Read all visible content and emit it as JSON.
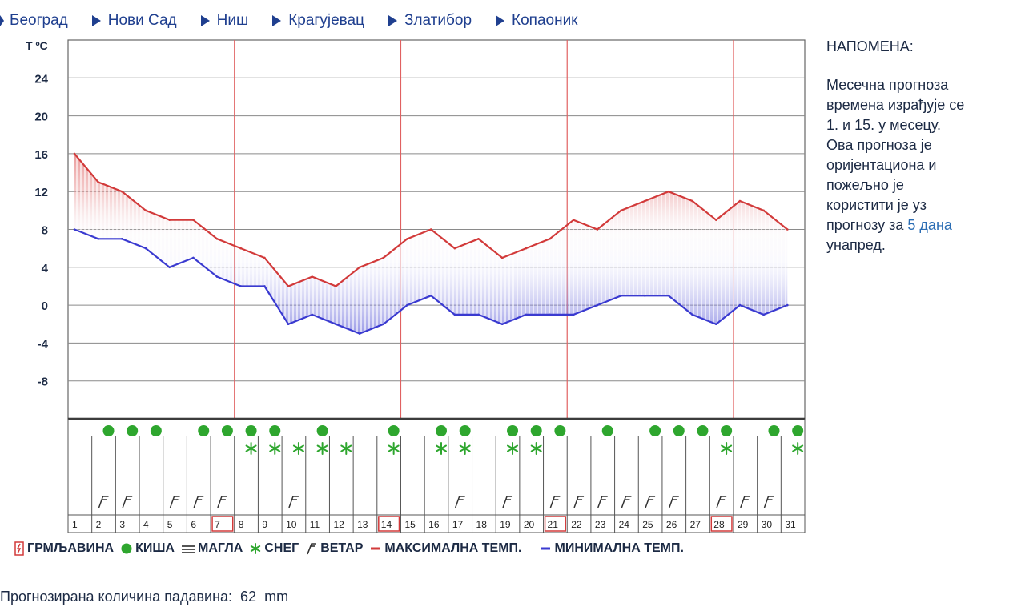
{
  "nav": {
    "items": [
      "Београд",
      "Нови Сад",
      "Ниш",
      "Крагујевац",
      "Златибор",
      "Копаоник"
    ]
  },
  "note": {
    "title": "НАПОМЕНА:",
    "lines": [
      "Месечна прогноза",
      "времена израђује се",
      "1. и 15. у месецу.",
      "Ова прогноза је",
      "оријентациона и",
      "пожељно је",
      "користити је уз",
      "прогнозу за"
    ],
    "highlight": "5 дана",
    "last_line": "унапред."
  },
  "legend": {
    "thunder": "ГРМЉАВИНА",
    "rain": "КИША",
    "fog": "МАГЛА",
    "snow": "СНЕГ",
    "wind": "ВЕТАР",
    "max": "МАКСИМАЛНА ТЕМП.",
    "min": "МИНИМАЛНА ТЕМП."
  },
  "footer": {
    "label": "Прогнозирана количина падавина:",
    "value": "62",
    "unit": "mm"
  },
  "colors": {
    "max_line": "#d23a3a",
    "min_line": "#3a3ad0",
    "rain": "#2ea62e",
    "snow": "#2ea62e",
    "grid": "#8a8a8a",
    "week_line": "#e06060",
    "nav": "#1f3f8f"
  },
  "chart_data": {
    "type": "line",
    "ylabel": "T ºC",
    "yticks": [
      24,
      20,
      16,
      12,
      8,
      4,
      0,
      -4,
      -8
    ],
    "ylim": [
      -12,
      28
    ],
    "grid": true,
    "days": [
      1,
      2,
      3,
      4,
      5,
      6,
      7,
      8,
      9,
      10,
      11,
      12,
      13,
      14,
      15,
      16,
      17,
      18,
      19,
      20,
      21,
      22,
      23,
      24,
      25,
      26,
      27,
      28,
      29,
      30,
      31
    ],
    "week_markers": [
      7,
      14,
      21,
      28
    ],
    "series": [
      {
        "name": "МАКСИМАЛНА ТЕМП.",
        "values": [
          16,
          13,
          12,
          10,
          9,
          9,
          7,
          6,
          5,
          2,
          3,
          2,
          4,
          5,
          7,
          8,
          6,
          7,
          5,
          6,
          7,
          9,
          8,
          10,
          11,
          12,
          11,
          9,
          11,
          10,
          8
        ]
      },
      {
        "name": "МИНИМАЛНА ТЕМП.",
        "values": [
          8,
          7,
          7,
          6,
          4,
          5,
          3,
          2,
          2,
          -2,
          -1,
          -2,
          -3,
          -2,
          0,
          1,
          -1,
          -1,
          -2,
          -1,
          -1,
          -1,
          0,
          1,
          1,
          1,
          -1,
          -2,
          0,
          -1,
          0
        ]
      }
    ],
    "symbols": {
      "rain": [
        2,
        3,
        4,
        6,
        7,
        8,
        9,
        11,
        14,
        16,
        17,
        19,
        20,
        21,
        23,
        25,
        26,
        27,
        28,
        30,
        31
      ],
      "snow": [
        8,
        9,
        10,
        11,
        12,
        14,
        16,
        17,
        19,
        20,
        28,
        31
      ],
      "wind": [
        2,
        3,
        5,
        6,
        7,
        10,
        17,
        19,
        21,
        22,
        23,
        24,
        25,
        26,
        28,
        29,
        30
      ]
    }
  }
}
